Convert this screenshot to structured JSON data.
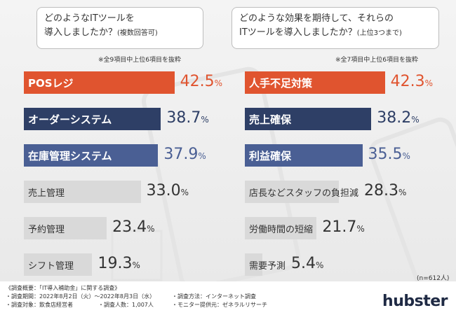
{
  "colors": {
    "orange": "#e0542f",
    "navy": "#2e3f66",
    "blue": "#4a5f94",
    "gray": "#d9d9d9",
    "orange_text": "#e0542f",
    "navy_text": "#2e3f66"
  },
  "left_question": {
    "line1": "どのようなITツールを",
    "line2": "導入しましたか？",
    "line2_small": "(複数回答可)",
    "note": "※全9項目中上位6項目を抜粋"
  },
  "right_question": {
    "line1": "どのような効果を期待して、それらの",
    "line2": "ITツールを導入しましたか？",
    "line2_small": "(上位3つまで)",
    "note": "※全7項目中上位6項目を抜粋"
  },
  "chart_data": [
    {
      "type": "bar",
      "orientation": "horizontal",
      "title": "どのようなITツールを導入しましたか？(複数回答可)",
      "categories": [
        "POSレジ",
        "オーダーシステム",
        "在庫管理システム",
        "売上管理",
        "予約管理",
        "シフト管理"
      ],
      "values": [
        42.5,
        38.7,
        37.9,
        33.0,
        23.4,
        19.3
      ],
      "value_labels": [
        "42.5",
        "38.7",
        "37.9",
        "33.0",
        "23.4",
        "19.3"
      ],
      "unit": "%",
      "bar_colors": [
        "#e0542f",
        "#2e3f66",
        "#4a5f94",
        "#d9d9d9",
        "#d9d9d9",
        "#d9d9d9"
      ],
      "label_colors": [
        "#ffffff",
        "#ffffff",
        "#ffffff",
        "#333333",
        "#333333",
        "#333333"
      ],
      "value_colors": [
        "#e0542f",
        "#2e3f66",
        "#4a5f94",
        "#333333",
        "#333333",
        "#333333"
      ]
    },
    {
      "type": "bar",
      "orientation": "horizontal",
      "title": "どのような効果を期待して、それらのITツールを導入しましたか？(上位3つまで)",
      "categories": [
        "人手不足対策",
        "売上確保",
        "利益確保",
        "店長などスタッフの負担減",
        "労働時間の短縮",
        "需要予測"
      ],
      "values": [
        42.3,
        38.2,
        35.5,
        28.3,
        21.7,
        5.4
      ],
      "value_labels": [
        "42.3",
        "38.2",
        "35.5",
        "28.3",
        "21.7",
        "5.4"
      ],
      "unit": "%",
      "bar_colors": [
        "#e0542f",
        "#2e3f66",
        "#4a5f94",
        "#d9d9d9",
        "#d9d9d9",
        "#d9d9d9"
      ],
      "label_colors": [
        "#ffffff",
        "#ffffff",
        "#ffffff",
        "#333333",
        "#333333",
        "#333333"
      ],
      "value_colors": [
        "#e0542f",
        "#2e3f66",
        "#4a5f94",
        "#333333",
        "#333333",
        "#333333"
      ]
    }
  ],
  "sample_note": "(n=612人)",
  "footer": {
    "overview": "《調査概要：「IT導入補助金」に関する調査》",
    "period": "・調査期間：2022年8月2日（火）～2022年8月3日（水）",
    "method": "・調査方法：インターネット調査",
    "target": "・調査対象：飲食店経営者",
    "count": "・調査人数：1,007人",
    "provider": "・モニター提供元：ゼネラルリサーチ"
  },
  "logo": "hubster"
}
